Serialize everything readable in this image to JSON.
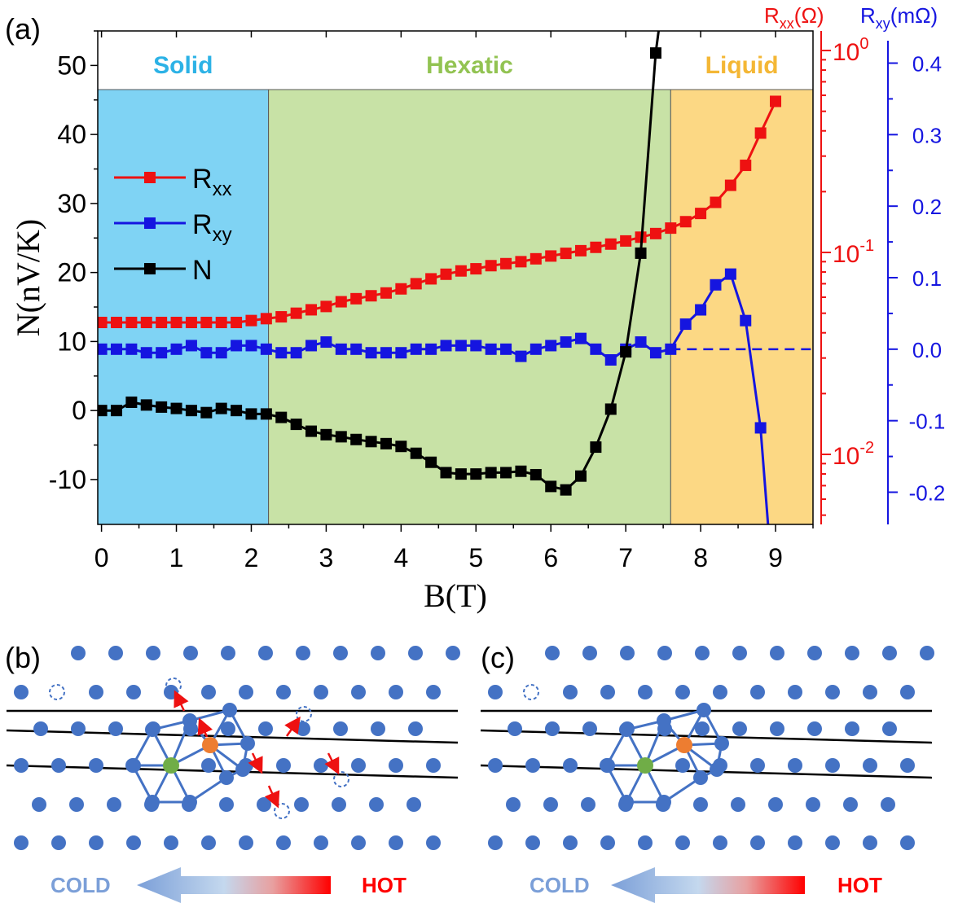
{
  "panel_labels": [
    "(a)",
    "(b)",
    "(c)"
  ],
  "chart_data": {
    "type": "scatter",
    "xlabel": "B(T)",
    "ylabel": "N(nV/K)",
    "xlim": [
      -0.05,
      9.5
    ],
    "ylim": [
      -16.5,
      55
    ],
    "xticks": [
      0,
      1,
      2,
      3,
      4,
      5,
      6,
      7,
      8,
      9
    ],
    "yticks": [
      -10,
      0,
      10,
      20,
      30,
      40,
      50
    ],
    "xtick_labels": [
      "0",
      "1",
      "2",
      "3",
      "4",
      "5",
      "6",
      "7",
      "8",
      "9"
    ],
    "ytick_labels": [
      "-10",
      "0",
      "10",
      "20",
      "30",
      "40",
      "50"
    ],
    "right_axis_1": {
      "label": "R",
      "label_sub": "xx",
      "label_unit": "(Ω)",
      "scale": "log",
      "range": [
        0.0045,
        1.25
      ],
      "ticks": [
        0.01,
        0.1,
        1.0
      ],
      "tick_labels_base": "10",
      "tick_labels_exp": [
        "-2",
        "-1",
        "0"
      ],
      "color": "#ee1111"
    },
    "right_axis_2": {
      "label": "R",
      "label_sub": "xy",
      "label_unit": "(mΩ)",
      "range": [
        -0.245,
        0.445
      ],
      "ticks": [
        -0.2,
        -0.1,
        0.0,
        0.1,
        0.2,
        0.3,
        0.4
      ],
      "tick_labels": [
        "-0.2",
        "-0.1",
        "0.0",
        "0.1",
        "0.2",
        "0.3",
        "0.4"
      ],
      "color": "#1515e0"
    },
    "regions": [
      {
        "label": "Solid",
        "from": -0.05,
        "to": 2.23,
        "color": "#7fd3f4",
        "label_color": "#2cb2e6"
      },
      {
        "label": "Hexatic",
        "from": 2.23,
        "to": 7.6,
        "color": "#c8e2a6",
        "label_color": "#92c352"
      },
      {
        "label": "Liquid",
        "from": 7.6,
        "to": 9.5,
        "color": "#fcd884",
        "label_color": "#f4b735"
      }
    ],
    "zero_line_rxy": 0.0,
    "legend": {
      "position": "left",
      "entries": [
        {
          "series": "Rxx",
          "text": "R",
          "sub": "xx",
          "color": "#ee1111"
        },
        {
          "series": "Rxy",
          "text": "R",
          "sub": "xy",
          "color": "#1515e0"
        },
        {
          "series": "N",
          "text": "N",
          "sub": "",
          "color": "#000000"
        }
      ]
    },
    "series": [
      {
        "name": "Rxx",
        "axis": "right_axis_1",
        "color": "#ee1111",
        "x": [
          0,
          0.2,
          0.4,
          0.6,
          0.8,
          1.0,
          1.2,
          1.4,
          1.6,
          1.8,
          2.0,
          2.2,
          2.4,
          2.6,
          2.8,
          3.0,
          3.2,
          3.4,
          3.6,
          3.8,
          4.0,
          4.2,
          4.4,
          4.6,
          4.8,
          5.0,
          5.2,
          5.4,
          5.6,
          5.8,
          6.0,
          6.2,
          6.4,
          6.6,
          6.8,
          7.0,
          7.2,
          7.4,
          7.6,
          7.8,
          8.0,
          8.2,
          8.4,
          8.6,
          8.8,
          9.0
        ],
        "y": [
          0.045,
          0.045,
          0.045,
          0.045,
          0.045,
          0.045,
          0.045,
          0.045,
          0.045,
          0.045,
          0.046,
          0.047,
          0.048,
          0.05,
          0.052,
          0.054,
          0.057,
          0.059,
          0.061,
          0.063,
          0.066,
          0.07,
          0.074,
          0.078,
          0.081,
          0.083,
          0.086,
          0.088,
          0.09,
          0.093,
          0.096,
          0.099,
          0.102,
          0.106,
          0.11,
          0.114,
          0.119,
          0.124,
          0.132,
          0.142,
          0.156,
          0.177,
          0.215,
          0.27,
          0.39,
          0.56
        ]
      },
      {
        "name": "Rxy",
        "axis": "right_axis_2",
        "color": "#1515e0",
        "x": [
          0,
          0.2,
          0.4,
          0.6,
          0.8,
          1.0,
          1.2,
          1.4,
          1.6,
          1.8,
          2.0,
          2.2,
          2.4,
          2.6,
          2.8,
          3.0,
          3.2,
          3.4,
          3.6,
          3.8,
          4.0,
          4.2,
          4.4,
          4.6,
          4.8,
          5.0,
          5.2,
          5.4,
          5.6,
          5.8,
          6.0,
          6.2,
          6.4,
          6.6,
          6.8,
          7.0,
          7.2,
          7.4,
          7.6,
          7.8,
          8.0,
          8.2,
          8.4,
          8.6,
          8.8,
          8.9
        ],
        "y": [
          0.0,
          0.0,
          0.0,
          -0.005,
          -0.005,
          0.0,
          0.005,
          -0.005,
          -0.005,
          0.005,
          0.005,
          0.0,
          -0.005,
          -0.005,
          0.005,
          0.01,
          0.0,
          0.0,
          -0.005,
          -0.005,
          -0.005,
          0.0,
          0.0,
          0.005,
          0.005,
          0.005,
          0.0,
          0.0,
          -0.01,
          0.0,
          0.005,
          0.01,
          0.015,
          0.0,
          -0.015,
          0.0,
          0.01,
          -0.005,
          0.0,
          0.035,
          0.055,
          0.09,
          0.105,
          0.04,
          -0.11,
          -0.245
        ]
      },
      {
        "name": "N",
        "axis": "left",
        "color": "#000000",
        "x": [
          0,
          0.2,
          0.4,
          0.6,
          0.8,
          1.0,
          1.2,
          1.4,
          1.6,
          1.8,
          2.0,
          2.2,
          2.4,
          2.6,
          2.8,
          3.0,
          3.2,
          3.4,
          3.6,
          3.8,
          4.0,
          4.2,
          4.4,
          4.6,
          4.8,
          5.0,
          5.2,
          5.4,
          5.6,
          5.8,
          6.0,
          6.2,
          6.4,
          6.6,
          6.8,
          7.0,
          7.2,
          7.4
        ],
        "y": [
          0,
          0,
          1.2,
          0.8,
          0.5,
          0.3,
          0,
          -0.3,
          0.3,
          0,
          -0.5,
          -0.5,
          -1.0,
          -2.0,
          -3.0,
          -3.5,
          -3.8,
          -4.2,
          -4.5,
          -4.8,
          -5.2,
          -6.2,
          -7.5,
          -9.0,
          -9.2,
          -9.2,
          -9.0,
          -9.0,
          -8.8,
          -9.3,
          -11.0,
          -11.5,
          -9.5,
          -5.3,
          0.2,
          8.5,
          22.8,
          51.8
        ]
      }
    ]
  },
  "diagram_b": {
    "label": "(b)",
    "cold_label": "COLD",
    "hot_label": "HOT"
  },
  "diagram_c": {
    "label": "(c)",
    "cold_label": "COLD",
    "hot_label": "HOT"
  }
}
